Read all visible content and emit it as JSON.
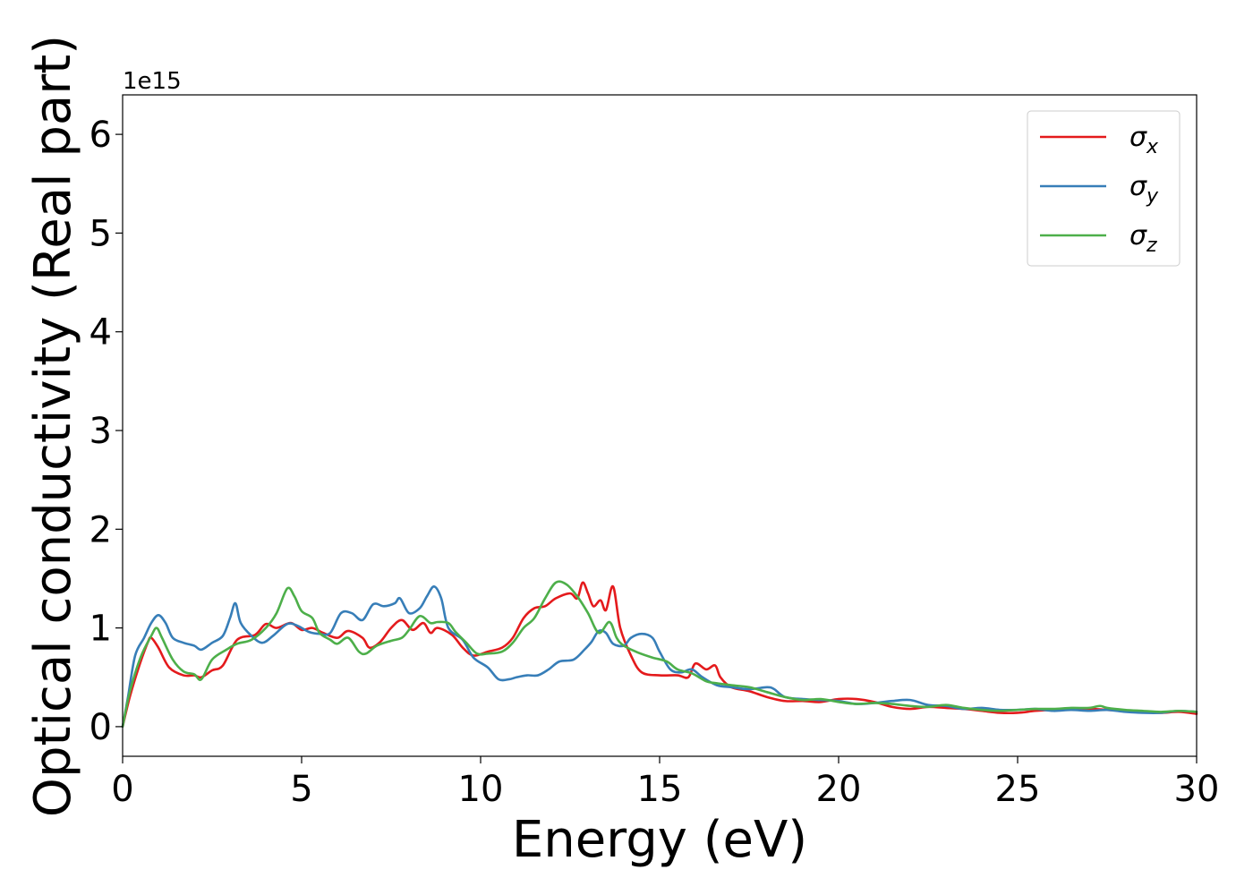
{
  "chart_data": {
    "type": "line",
    "xlabel": "Energy (eV)",
    "ylabel": "Optical conductivity (Real part)",
    "offset_text": "1e15",
    "xlim": [
      0,
      30
    ],
    "ylim": [
      -0.3,
      6.4
    ],
    "y_scale_factor": 1000000000000000.0,
    "grid": false,
    "legend_position": "top-right",
    "x_ticks": [
      {
        "value": 0,
        "label": "0"
      },
      {
        "value": 5,
        "label": "5"
      },
      {
        "value": 10,
        "label": "10"
      },
      {
        "value": 15,
        "label": "15"
      },
      {
        "value": 20,
        "label": "20"
      },
      {
        "value": 25,
        "label": "25"
      },
      {
        "value": 30,
        "label": "30"
      }
    ],
    "y_ticks": [
      {
        "value": 0,
        "label": "0"
      },
      {
        "value": 1,
        "label": "1"
      },
      {
        "value": 2,
        "label": "2"
      },
      {
        "value": 3,
        "label": "3"
      },
      {
        "value": 4,
        "label": "4"
      },
      {
        "value": 5,
        "label": "5"
      },
      {
        "value": 6,
        "label": "6"
      }
    ],
    "series": [
      {
        "name": "σ",
        "subscript": "x",
        "color": "#e41a1c",
        "points": [
          [
            0,
            0
          ],
          [
            0.2,
            0.3
          ],
          [
            0.45,
            0.6
          ],
          [
            0.7,
            0.85
          ],
          [
            0.8,
            0.9
          ],
          [
            1.0,
            0.8
          ],
          [
            1.3,
            0.6
          ],
          [
            1.7,
            0.52
          ],
          [
            2.0,
            0.52
          ],
          [
            2.2,
            0.5
          ],
          [
            2.5,
            0.57
          ],
          [
            2.8,
            0.62
          ],
          [
            3.2,
            0.88
          ],
          [
            3.7,
            0.93
          ],
          [
            4.0,
            1.04
          ],
          [
            4.3,
            1.0
          ],
          [
            4.7,
            1.05
          ],
          [
            5.0,
            0.98
          ],
          [
            5.3,
            1.0
          ],
          [
            5.6,
            0.95
          ],
          [
            6.0,
            0.9
          ],
          [
            6.3,
            0.97
          ],
          [
            6.7,
            0.9
          ],
          [
            6.9,
            0.8
          ],
          [
            7.2,
            0.86
          ],
          [
            7.5,
            1.0
          ],
          [
            7.8,
            1.08
          ],
          [
            8.1,
            0.98
          ],
          [
            8.4,
            1.05
          ],
          [
            8.6,
            0.95
          ],
          [
            8.8,
            1.0
          ],
          [
            9.2,
            0.93
          ],
          [
            9.5,
            0.8
          ],
          [
            9.8,
            0.72
          ],
          [
            10.2,
            0.76
          ],
          [
            10.6,
            0.8
          ],
          [
            10.9,
            0.9
          ],
          [
            11.2,
            1.1
          ],
          [
            11.5,
            1.2
          ],
          [
            11.8,
            1.22
          ],
          [
            12.1,
            1.3
          ],
          [
            12.5,
            1.35
          ],
          [
            12.7,
            1.3
          ],
          [
            12.85,
            1.46
          ],
          [
            13.0,
            1.35
          ],
          [
            13.15,
            1.22
          ],
          [
            13.35,
            1.28
          ],
          [
            13.5,
            1.18
          ],
          [
            13.7,
            1.42
          ],
          [
            13.9,
            1.0
          ],
          [
            14.2,
            0.72
          ],
          [
            14.5,
            0.55
          ],
          [
            15.0,
            0.52
          ],
          [
            15.5,
            0.52
          ],
          [
            15.8,
            0.5
          ],
          [
            16.0,
            0.64
          ],
          [
            16.3,
            0.58
          ],
          [
            16.55,
            0.62
          ],
          [
            16.7,
            0.5
          ],
          [
            17.0,
            0.4
          ],
          [
            17.5,
            0.36
          ],
          [
            18.0,
            0.3
          ],
          [
            18.5,
            0.26
          ],
          [
            19.0,
            0.26
          ],
          [
            19.5,
            0.25
          ],
          [
            20.0,
            0.28
          ],
          [
            20.5,
            0.28
          ],
          [
            21.0,
            0.25
          ],
          [
            21.5,
            0.2
          ],
          [
            22.0,
            0.18
          ],
          [
            22.5,
            0.2
          ],
          [
            23.0,
            0.19
          ],
          [
            23.5,
            0.18
          ],
          [
            24.0,
            0.16
          ],
          [
            24.5,
            0.14
          ],
          [
            25.0,
            0.14
          ],
          [
            25.5,
            0.16
          ],
          [
            26.0,
            0.17
          ],
          [
            26.5,
            0.17
          ],
          [
            27.0,
            0.18
          ],
          [
            27.5,
            0.17
          ],
          [
            28.0,
            0.16
          ],
          [
            28.5,
            0.15
          ],
          [
            29.0,
            0.14
          ],
          [
            29.5,
            0.15
          ],
          [
            30.0,
            0.13
          ]
        ]
      },
      {
        "name": "σ",
        "subscript": "y",
        "color": "#377eb8",
        "points": [
          [
            0,
            0
          ],
          [
            0.15,
            0.3
          ],
          [
            0.35,
            0.72
          ],
          [
            0.6,
            0.9
          ],
          [
            0.8,
            1.05
          ],
          [
            1.0,
            1.13
          ],
          [
            1.2,
            1.05
          ],
          [
            1.4,
            0.9
          ],
          [
            1.7,
            0.85
          ],
          [
            2.0,
            0.82
          ],
          [
            2.2,
            0.78
          ],
          [
            2.5,
            0.85
          ],
          [
            2.8,
            0.92
          ],
          [
            3.0,
            1.1
          ],
          [
            3.15,
            1.25
          ],
          [
            3.3,
            1.05
          ],
          [
            3.6,
            0.92
          ],
          [
            3.9,
            0.85
          ],
          [
            4.2,
            0.92
          ],
          [
            4.6,
            1.04
          ],
          [
            4.9,
            1.02
          ],
          [
            5.2,
            0.96
          ],
          [
            5.5,
            0.94
          ],
          [
            5.8,
            0.95
          ],
          [
            6.1,
            1.15
          ],
          [
            6.4,
            1.15
          ],
          [
            6.7,
            1.08
          ],
          [
            7.0,
            1.24
          ],
          [
            7.3,
            1.22
          ],
          [
            7.6,
            1.25
          ],
          [
            7.75,
            1.3
          ],
          [
            8.0,
            1.15
          ],
          [
            8.3,
            1.2
          ],
          [
            8.5,
            1.32
          ],
          [
            8.7,
            1.42
          ],
          [
            8.9,
            1.3
          ],
          [
            9.1,
            1.0
          ],
          [
            9.5,
            0.88
          ],
          [
            9.8,
            0.7
          ],
          [
            10.2,
            0.6
          ],
          [
            10.5,
            0.48
          ],
          [
            10.8,
            0.48
          ],
          [
            11.0,
            0.5
          ],
          [
            11.3,
            0.52
          ],
          [
            11.6,
            0.52
          ],
          [
            11.9,
            0.58
          ],
          [
            12.2,
            0.66
          ],
          [
            12.6,
            0.68
          ],
          [
            12.9,
            0.78
          ],
          [
            13.1,
            0.86
          ],
          [
            13.3,
            0.97
          ],
          [
            13.5,
            0.95
          ],
          [
            13.7,
            0.84
          ],
          [
            14.0,
            0.82
          ],
          [
            14.2,
            0.9
          ],
          [
            14.5,
            0.94
          ],
          [
            14.8,
            0.9
          ],
          [
            15.0,
            0.76
          ],
          [
            15.3,
            0.58
          ],
          [
            15.6,
            0.55
          ],
          [
            15.9,
            0.58
          ],
          [
            16.2,
            0.5
          ],
          [
            16.6,
            0.42
          ],
          [
            17.0,
            0.4
          ],
          [
            17.5,
            0.38
          ],
          [
            18.0,
            0.4
          ],
          [
            18.2,
            0.38
          ],
          [
            18.5,
            0.3
          ],
          [
            19.0,
            0.28
          ],
          [
            19.5,
            0.27
          ],
          [
            20.0,
            0.26
          ],
          [
            20.5,
            0.23
          ],
          [
            21.0,
            0.24
          ],
          [
            21.5,
            0.26
          ],
          [
            22.0,
            0.27
          ],
          [
            22.5,
            0.22
          ],
          [
            23.0,
            0.21
          ],
          [
            23.5,
            0.18
          ],
          [
            24.0,
            0.19
          ],
          [
            24.5,
            0.17
          ],
          [
            25.0,
            0.17
          ],
          [
            25.5,
            0.18
          ],
          [
            26.0,
            0.16
          ],
          [
            26.5,
            0.17
          ],
          [
            27.0,
            0.16
          ],
          [
            27.5,
            0.17
          ],
          [
            28.0,
            0.15
          ],
          [
            28.5,
            0.14
          ],
          [
            29.0,
            0.14
          ],
          [
            29.5,
            0.16
          ],
          [
            30.0,
            0.15
          ]
        ]
      },
      {
        "name": "σ",
        "subscript": "z",
        "color": "#4daf4a",
        "points": [
          [
            0,
            0
          ],
          [
            0.2,
            0.35
          ],
          [
            0.5,
            0.7
          ],
          [
            0.8,
            0.92
          ],
          [
            0.95,
            1.0
          ],
          [
            1.1,
            0.9
          ],
          [
            1.4,
            0.68
          ],
          [
            1.7,
            0.56
          ],
          [
            2.0,
            0.53
          ],
          [
            2.2,
            0.48
          ],
          [
            2.5,
            0.68
          ],
          [
            2.9,
            0.78
          ],
          [
            3.2,
            0.84
          ],
          [
            3.6,
            0.88
          ],
          [
            4.0,
            1.0
          ],
          [
            4.3,
            1.15
          ],
          [
            4.6,
            1.4
          ],
          [
            4.8,
            1.32
          ],
          [
            5.0,
            1.17
          ],
          [
            5.3,
            1.1
          ],
          [
            5.5,
            0.95
          ],
          [
            5.8,
            0.88
          ],
          [
            6.0,
            0.84
          ],
          [
            6.3,
            0.9
          ],
          [
            6.6,
            0.76
          ],
          [
            6.8,
            0.74
          ],
          [
            7.1,
            0.82
          ],
          [
            7.5,
            0.87
          ],
          [
            7.8,
            0.9
          ],
          [
            8.0,
            0.98
          ],
          [
            8.3,
            1.12
          ],
          [
            8.6,
            1.05
          ],
          [
            8.8,
            1.06
          ],
          [
            9.1,
            1.05
          ],
          [
            9.3,
            0.96
          ],
          [
            9.6,
            0.85
          ],
          [
            9.9,
            0.74
          ],
          [
            10.2,
            0.74
          ],
          [
            10.6,
            0.76
          ],
          [
            10.9,
            0.85
          ],
          [
            11.2,
            1.0
          ],
          [
            11.5,
            1.1
          ],
          [
            11.8,
            1.3
          ],
          [
            12.1,
            1.46
          ],
          [
            12.4,
            1.44
          ],
          [
            12.7,
            1.32
          ],
          [
            13.0,
            1.15
          ],
          [
            13.3,
            0.95
          ],
          [
            13.6,
            1.06
          ],
          [
            13.8,
            0.9
          ],
          [
            14.0,
            0.82
          ],
          [
            14.4,
            0.75
          ],
          [
            14.8,
            0.7
          ],
          [
            15.2,
            0.66
          ],
          [
            15.5,
            0.58
          ],
          [
            15.9,
            0.54
          ],
          [
            16.3,
            0.46
          ],
          [
            16.6,
            0.44
          ],
          [
            17.0,
            0.42
          ],
          [
            17.5,
            0.4
          ],
          [
            18.0,
            0.35
          ],
          [
            18.5,
            0.3
          ],
          [
            19.0,
            0.27
          ],
          [
            19.5,
            0.28
          ],
          [
            20.0,
            0.25
          ],
          [
            20.5,
            0.23
          ],
          [
            21.0,
            0.24
          ],
          [
            21.5,
            0.23
          ],
          [
            22.0,
            0.21
          ],
          [
            22.5,
            0.2
          ],
          [
            23.0,
            0.22
          ],
          [
            23.5,
            0.19
          ],
          [
            24.0,
            0.17
          ],
          [
            24.5,
            0.16
          ],
          [
            25.0,
            0.17
          ],
          [
            25.5,
            0.18
          ],
          [
            26.0,
            0.18
          ],
          [
            26.5,
            0.19
          ],
          [
            27.0,
            0.19
          ],
          [
            27.3,
            0.21
          ],
          [
            27.5,
            0.19
          ],
          [
            28.0,
            0.17
          ],
          [
            28.5,
            0.16
          ],
          [
            29.0,
            0.15
          ],
          [
            29.5,
            0.16
          ],
          [
            30.0,
            0.15
          ]
        ]
      }
    ]
  }
}
